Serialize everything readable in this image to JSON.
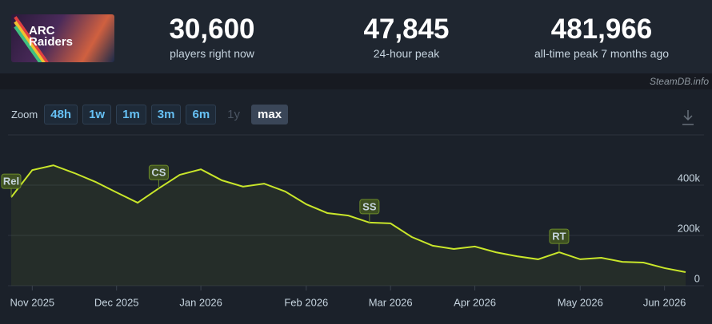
{
  "game": {
    "logo": "ARC Raiders"
  },
  "stats": [
    {
      "value": "30,600",
      "label": "players right now"
    },
    {
      "value": "47,845",
      "label": "24-hour peak"
    },
    {
      "value": "481,966",
      "label": "all-time peak 7 months ago"
    }
  ],
  "watermark": "SteamDB.info",
  "zoom": {
    "label": "Zoom",
    "options": [
      "48h",
      "1w",
      "1m",
      "3m",
      "6m",
      "1y",
      "max"
    ],
    "active": "max",
    "disabled": [
      "1y"
    ]
  },
  "chart_data": {
    "type": "line",
    "categories": [
      null,
      "Nov 2025",
      null,
      null,
      null,
      "Dec 2025",
      null,
      null,
      null,
      "Jan 2026",
      null,
      null,
      null,
      null,
      "Feb 2026",
      null,
      null,
      null,
      "Mar 2026",
      null,
      null,
      null,
      "Apr 2026",
      null,
      null,
      null,
      null,
      "May 2026",
      null,
      null,
      null,
      "Jun 2026",
      null
    ],
    "series": [
      {
        "color": "#c9e62a",
        "values": [
          352000,
          460000,
          479000,
          448000,
          413000,
          371000,
          330000,
          387000,
          441000,
          463000,
          419000,
          394000,
          406000,
          375000,
          324000,
          289000,
          279000,
          251000,
          248000,
          194000,
          159000,
          146000,
          156000,
          133000,
          117000,
          105000,
          133000,
          105000,
          111000,
          95000,
          92000,
          70000,
          54000
        ],
        "markers": [
          "Rel",
          null,
          null,
          null,
          null,
          null,
          null,
          "CS",
          null,
          null,
          null,
          null,
          null,
          null,
          null,
          null,
          null,
          "SS",
          null,
          null,
          null,
          null,
          null,
          null,
          null,
          null,
          "RT",
          null,
          null,
          null,
          null,
          null,
          null
        ]
      }
    ],
    "ylim": [
      0,
      600000
    ],
    "yticks": [
      {
        "value": 0,
        "label": "0"
      },
      {
        "value": 200000,
        "label": "200k"
      },
      {
        "value": 400000,
        "label": "400k"
      },
      {
        "value": 600000,
        "label": ""
      }
    ],
    "grid": true
  }
}
